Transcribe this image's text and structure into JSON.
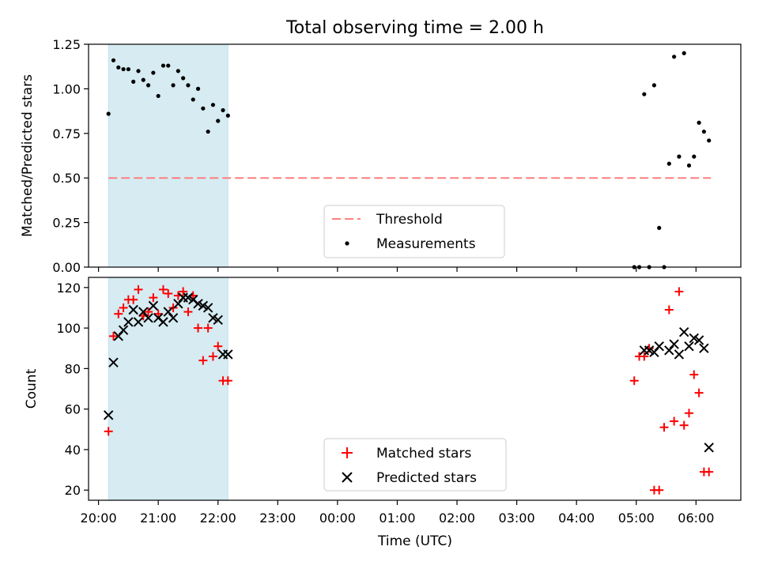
{
  "chart_data": [
    {
      "type": "scatter",
      "title": "Total observing time = 2.00 h",
      "ylabel": "Matched/Predicted stars",
      "ylim": [
        0,
        1.25
      ],
      "yticks": [
        "0.00",
        "0.25",
        "0.50",
        "0.75",
        "1.00",
        "1.25"
      ],
      "shaded_interval": [
        "20:10",
        "22:10"
      ],
      "threshold": {
        "name": "Threshold",
        "value": 0.5,
        "color": "#ff7f7f",
        "style": "dashed",
        "from": "20:10",
        "to": "06:15"
      },
      "series": [
        {
          "name": "Measurements",
          "color": "#000000",
          "marker": "dot",
          "x": [
            "20:10",
            "20:15",
            "20:20",
            "20:25",
            "20:30",
            "20:35",
            "20:40",
            "20:45",
            "20:50",
            "20:55",
            "21:00",
            "21:05",
            "21:10",
            "21:15",
            "21:20",
            "21:25",
            "21:30",
            "21:35",
            "21:40",
            "21:45",
            "21:50",
            "21:55",
            "22:00",
            "22:05",
            "22:10",
            "04:58",
            "05:03",
            "05:08",
            "05:13",
            "05:18",
            "05:23",
            "05:28",
            "05:33",
            "05:38",
            "05:43",
            "05:48",
            "05:53",
            "05:58",
            "06:03",
            "06:08",
            "06:13"
          ],
          "y": [
            0.86,
            1.16,
            1.12,
            1.11,
            1.11,
            1.04,
            1.1,
            1.05,
            1.02,
            1.09,
            0.96,
            1.13,
            1.13,
            1.02,
            1.1,
            1.06,
            1.02,
            0.94,
            1.0,
            0.89,
            0.76,
            0.91,
            0.82,
            0.88,
            0.85,
            0.0,
            0.0,
            0.97,
            0.0,
            1.02,
            0.22,
            0.0,
            0.58,
            1.18,
            0.62,
            1.2,
            0.57,
            0.62,
            0.81,
            0.76,
            0.71
          ]
        }
      ],
      "legend": {
        "placement": "lower-center",
        "entries": [
          "Threshold",
          "Measurements"
        ]
      }
    },
    {
      "type": "scatter",
      "xlabel": "Time (UTC)",
      "ylabel": "Count",
      "ylim": [
        15,
        125
      ],
      "yticks": [
        "20",
        "40",
        "60",
        "80",
        "100",
        "120"
      ],
      "xticks": [
        "20:00",
        "21:00",
        "22:00",
        "23:00",
        "00:00",
        "01:00",
        "02:00",
        "03:00",
        "04:00",
        "05:00",
        "06:00"
      ],
      "xrange": [
        "19:50",
        "06:45"
      ],
      "shaded_interval": [
        "20:10",
        "22:10"
      ],
      "series": [
        {
          "name": "Matched stars",
          "color": "#ff0000",
          "marker": "plus",
          "x": [
            "20:10",
            "20:15",
            "20:20",
            "20:25",
            "20:30",
            "20:35",
            "20:40",
            "20:45",
            "20:50",
            "20:55",
            "21:00",
            "21:05",
            "21:10",
            "21:15",
            "21:20",
            "21:25",
            "21:30",
            "21:35",
            "21:40",
            "21:45",
            "21:50",
            "21:55",
            "22:00",
            "22:05",
            "22:10",
            "04:58",
            "05:03",
            "05:08",
            "05:13",
            "05:18",
            "05:23",
            "05:28",
            "05:33",
            "05:38",
            "05:43",
            "05:48",
            "05:53",
            "05:58",
            "06:03",
            "06:08",
            "06:13"
          ],
          "y": [
            49,
            96,
            107,
            110,
            114,
            114,
            119,
            106,
            108,
            115,
            107,
            119,
            117,
            110,
            116,
            118,
            108,
            116,
            100,
            84,
            100,
            86,
            91,
            74,
            74,
            74,
            86,
            86,
            90,
            20,
            20,
            51,
            109,
            54,
            118,
            52,
            58,
            77,
            68,
            29,
            29
          ]
        },
        {
          "name": "Predicted stars",
          "color": "#000000",
          "marker": "x",
          "x": [
            "20:10",
            "20:15",
            "20:20",
            "20:25",
            "20:30",
            "20:35",
            "20:40",
            "20:45",
            "20:50",
            "20:55",
            "21:00",
            "21:05",
            "21:10",
            "21:15",
            "21:20",
            "21:25",
            "21:30",
            "21:35",
            "21:40",
            "21:45",
            "21:50",
            "21:55",
            "22:00",
            "22:05",
            "22:10",
            "05:08",
            "05:13",
            "05:18",
            "05:23",
            "05:33",
            "05:38",
            "05:43",
            "05:48",
            "05:53",
            "05:58",
            "06:03",
            "06:08",
            "06:13"
          ],
          "y": [
            57,
            83,
            96,
            99,
            103,
            109,
            103,
            108,
            105,
            111,
            105,
            103,
            108,
            105,
            112,
            115,
            115,
            114,
            112,
            111,
            110,
            105,
            104,
            87,
            87,
            89,
            89,
            88,
            91,
            89,
            92,
            87,
            98,
            91,
            95,
            94,
            90,
            41
          ]
        }
      ],
      "legend": {
        "placement": "lower-center",
        "entries": [
          "Matched stars",
          "Predicted stars"
        ]
      }
    }
  ]
}
